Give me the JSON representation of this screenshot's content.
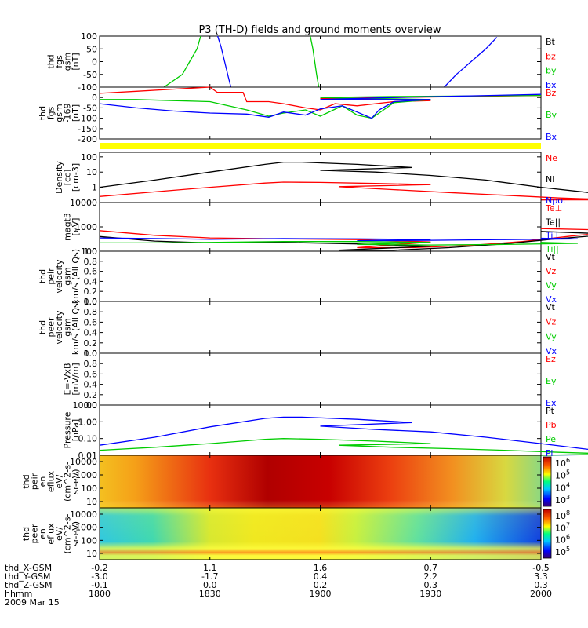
{
  "title": "P3 (TH-D) fields and ground moments overview",
  "colors": {
    "black": "#000000",
    "red": "#ff0000",
    "green": "#00cc00",
    "blue": "#0000ff",
    "yellow": "#ffff00"
  },
  "chart_data": [
    {
      "type": "line",
      "panel": "fgs",
      "ylabel": [
        "thd",
        "fgs",
        "gsm",
        "[nT]"
      ],
      "ylim": [
        -100,
        100
      ],
      "yticks": [
        "100",
        "50",
        "0",
        "-50",
        "-100"
      ],
      "legend": [
        {
          "text": "Bt",
          "color": "#000000"
        },
        {
          "text": "bz",
          "color": "#ff0000"
        },
        {
          "text": "by",
          "color": "#00cc00"
        },
        {
          "text": "bx",
          "color": "#0000ff"
        }
      ],
      "series": [
        {
          "name": "by",
          "color": "#00cc00",
          "x": [
            1817.5,
            1822.5,
            1824.5,
            1826.5,
            1827.5
          ],
          "y": [
            -100,
            -50,
            0,
            50,
            100
          ]
        },
        {
          "name": "by",
          "color": "#00cc00",
          "x": [
            1857.3,
            1858,
            1859,
            1859.6
          ],
          "y": [
            100,
            50,
            -50,
            -100
          ]
        },
        {
          "name": "bx",
          "color": "#0000ff",
          "x": [
            1832.1,
            1833,
            1834,
            1835,
            1835.7
          ],
          "y": [
            100,
            60,
            0,
            -60,
            -100
          ]
        },
        {
          "name": "bx",
          "color": "#0000ff",
          "x": [
            1933.7,
            1937,
            1941,
            1945,
            1948
          ],
          "y": [
            -100,
            -50,
            0,
            50,
            95
          ]
        }
      ]
    },
    {
      "type": "line",
      "panel": "fgs-169",
      "ylabel": [
        "thd",
        "fgs",
        "gsm",
        "-169",
        "[nT]"
      ],
      "ylim": [
        -200,
        50
      ],
      "yticks": [
        "0",
        "-50",
        "-100",
        "-150",
        "-200"
      ],
      "legend": [
        {
          "text": "Bz",
          "color": "#ff0000"
        },
        {
          "text": "By",
          "color": "#00cc00"
        },
        {
          "text": "Bx",
          "color": "#0000ff"
        }
      ],
      "series": [
        {
          "name": "Bz",
          "color": "#ff0000",
          "x": [
            1800,
            1810,
            1820,
            1830,
            1832,
            1839,
            1840,
            1846,
            1850,
            1856,
            1860,
            1864,
            1870,
            1880,
            1890,
            1900,
            1920,
            2000
          ],
          "y": [
            20,
            30,
            40,
            50,
            25,
            25,
            -20,
            -20,
            -30,
            -50,
            -60,
            -30,
            -40,
            -20,
            -15,
            -5,
            0,
            10
          ]
        },
        {
          "name": "By",
          "color": "#00cc00",
          "x": [
            1800,
            1810,
            1820,
            1830,
            1840,
            1846,
            1850,
            1856,
            1860,
            1866,
            1870,
            1874,
            1880,
            1890,
            1900,
            1920,
            2000
          ],
          "y": [
            -10,
            -10,
            -15,
            -20,
            -60,
            -90,
            -75,
            -60,
            -90,
            -40,
            -85,
            -100,
            -25,
            -10,
            0,
            5,
            10
          ]
        },
        {
          "name": "Bx",
          "color": "#0000ff",
          "x": [
            1800,
            1810,
            1820,
            1830,
            1840,
            1846,
            1850,
            1856,
            1860,
            1866,
            1870,
            1874,
            1876,
            1880,
            1890,
            1900,
            1920,
            2000
          ],
          "y": [
            -30,
            -50,
            -65,
            -75,
            -80,
            -95,
            -70,
            -85,
            -55,
            -40,
            -70,
            -100,
            -60,
            -20,
            -10,
            -10,
            0,
            15
          ]
        }
      ]
    },
    {
      "type": "line",
      "panel": "density",
      "log_scale": true,
      "ylabel": [
        "Density",
        "[cc]",
        "[cm-3]"
      ],
      "ylim": [
        0.1,
        200
      ],
      "yticks": [
        "100",
        "10",
        "1"
      ],
      "legend": [
        {
          "text": "Ne",
          "color": "#ff0000"
        },
        {
          "text": "Ni",
          "color": "#000000"
        },
        {
          "text": "Npot",
          "color": "#0000ff"
        }
      ],
      "series": [
        {
          "name": "Ni",
          "color": "#000000",
          "x": [
            1800,
            1815,
            1830,
            1845,
            1850,
            1855,
            1870,
            1885,
            1900,
            1915,
            1930,
            1945,
            1960,
            1975,
            1990,
            2000
          ],
          "y": [
            1,
            3,
            10,
            32,
            45,
            45,
            32,
            20,
            13,
            10,
            6,
            3,
            1,
            0.4,
            0.2,
            0.15
          ]
        },
        {
          "name": "Ne",
          "color": "#ff0000",
          "x": [
            1800,
            1815,
            1830,
            1845,
            1850,
            1860,
            1875,
            1890,
            1905,
            1920,
            1935,
            1950,
            1965,
            1980,
            2000
          ],
          "y": [
            0.25,
            0.5,
            1,
            1.9,
            2.2,
            2.1,
            1.8,
            1.5,
            1.1,
            0.7,
            0.45,
            0.3,
            0.2,
            0.15,
            0.15
          ]
        }
      ]
    },
    {
      "type": "line",
      "panel": "temperature",
      "log_scale": true,
      "ylabel": [
        "magt3",
        "[eV]"
      ],
      "ylim": [
        100,
        10000
      ],
      "yticks": [
        "10000",
        "1000",
        "100"
      ],
      "legend": [
        {
          "text": "Te⊥",
          "color": "#ff0000"
        },
        {
          "text": "Te||",
          "color": "#000000"
        },
        {
          "text": "Ti⊥",
          "color": "#0000ff"
        },
        {
          "text": "Ti||",
          "color": "#00cc00"
        }
      ],
      "series": [
        {
          "name": "Te⊥",
          "color": "#ff0000",
          "x": [
            1800,
            1815,
            1830,
            1850,
            1870,
            1890,
            1910,
            1925,
            1940,
            1955,
            1970,
            1985,
            2000
          ],
          "y": [
            700,
            450,
            350,
            320,
            300,
            240,
            140,
            140,
            170,
            250,
            450,
            700,
            850
          ]
        },
        {
          "name": "Te||",
          "color": "#000000",
          "x": [
            1800,
            1815,
            1830,
            1850,
            1870,
            1890,
            1905,
            1920,
            1935,
            1950,
            1965,
            1980,
            2000
          ],
          "y": [
            400,
            260,
            220,
            230,
            200,
            160,
            110,
            110,
            140,
            200,
            330,
            500,
            650
          ]
        },
        {
          "name": "Ti⊥",
          "color": "#0000ff",
          "x": [
            1800,
            1815,
            1830,
            1850,
            1870,
            1890,
            1910,
            1930,
            1950,
            1970,
            2000
          ],
          "y": [
            350,
            330,
            310,
            330,
            320,
            300,
            270,
            280,
            300,
            320,
            340
          ]
        },
        {
          "name": "Ti||",
          "color": "#00cc00",
          "x": [
            1800,
            1815,
            1830,
            1850,
            1870,
            1890,
            1910,
            1930,
            1950,
            1970,
            2000
          ],
          "y": [
            220,
            220,
            230,
            250,
            250,
            230,
            190,
            180,
            190,
            210,
            230
          ]
        }
      ]
    },
    {
      "type": "line",
      "panel": "peir-velocity",
      "ylabel": [
        "thd",
        "peir",
        "velocity",
        "gsm",
        "km/s (All Qs)"
      ],
      "ylim": [
        0,
        1
      ],
      "yticks": [
        "1.0",
        "0.8",
        "0.6",
        "0.4",
        "0.2",
        "0.0"
      ],
      "legend": [
        {
          "text": "Vt",
          "color": "#000000"
        },
        {
          "text": "Vz",
          "color": "#ff0000"
        },
        {
          "text": "Vy",
          "color": "#00cc00"
        },
        {
          "text": "Vx",
          "color": "#0000ff"
        }
      ],
      "series": []
    },
    {
      "type": "line",
      "panel": "peer-velocity",
      "ylabel": [
        "thd",
        "peer",
        "velocity",
        "gsm",
        "km/s (All Qs)"
      ],
      "ylim": [
        0,
        1
      ],
      "yticks": [
        "1.0",
        "0.8",
        "0.6",
        "0.4",
        "0.2",
        "0.0"
      ],
      "legend": [
        {
          "text": "Vt",
          "color": "#000000"
        },
        {
          "text": "Vz",
          "color": "#ff0000"
        },
        {
          "text": "Vy",
          "color": "#00cc00"
        },
        {
          "text": "Vx",
          "color": "#0000ff"
        }
      ],
      "series": []
    },
    {
      "type": "line",
      "panel": "efield",
      "ylabel": [
        "E=-VxB",
        "[mV/m]"
      ],
      "ylim": [
        0,
        1
      ],
      "yticks": [
        "1.0",
        "0.8",
        "0.6",
        "0.4",
        "0.2",
        "0.0"
      ],
      "legend": [
        {
          "text": "Ez",
          "color": "#ff0000"
        },
        {
          "text": "Ey",
          "color": "#00cc00"
        },
        {
          "text": "Ex",
          "color": "#0000ff"
        }
      ],
      "series": []
    },
    {
      "type": "line",
      "panel": "pressure",
      "log_scale": true,
      "ylabel": [
        "Pressure",
        "[nPa]"
      ],
      "ylim": [
        0.01,
        10
      ],
      "yticks": [
        "10.00",
        "1.00",
        "0.10",
        "0.01"
      ],
      "legend": [
        {
          "text": "Pt",
          "color": "#000000"
        },
        {
          "text": "Pb",
          "color": "#ff0000"
        },
        {
          "text": "Pe",
          "color": "#00cc00"
        },
        {
          "text": "Pi",
          "color": "#0000ff"
        }
      ],
      "series": [
        {
          "name": "Pi",
          "color": "#0000ff",
          "x": [
            1800,
            1815,
            1830,
            1845,
            1850,
            1855,
            1870,
            1885,
            1900,
            1915,
            1930,
            1945,
            1960,
            1975,
            1990,
            2000
          ],
          "y": [
            0.04,
            0.12,
            0.5,
            1.6,
            1.9,
            1.9,
            1.4,
            0.9,
            0.55,
            0.35,
            0.25,
            0.12,
            0.05,
            0.02,
            0.012,
            0.01
          ]
        },
        {
          "name": "Pe",
          "color": "#00cc00",
          "x": [
            1800,
            1815,
            1830,
            1845,
            1850,
            1860,
            1875,
            1890,
            1905,
            1920,
            1935,
            1950,
            1965,
            1980,
            2000
          ],
          "y": [
            0.02,
            0.03,
            0.05,
            0.09,
            0.1,
            0.09,
            0.07,
            0.05,
            0.04,
            0.03,
            0.025,
            0.02,
            0.015,
            0.012,
            0.01
          ]
        }
      ]
    },
    {
      "type": "heatmap",
      "panel": "peir-en-eflux",
      "ylabel": [
        "thd",
        "peir",
        "en",
        "eflux",
        "eV/",
        "(cm^2-s-",
        "sr-eV)"
      ],
      "yticks": [
        "10000",
        "1000",
        "100",
        "10"
      ],
      "colorbar_labels": [
        "10^6",
        "10^5",
        "10^4",
        "10^3"
      ]
    },
    {
      "type": "heatmap",
      "panel": "peer-en-eflux",
      "ylabel": [
        "thd",
        "peer",
        "en",
        "eflux",
        "eV/",
        "(cm^2-s-",
        "sr-eV)"
      ],
      "yticks": [
        "10000",
        "1000",
        "100",
        "10"
      ],
      "colorbar_labels": [
        "10^8",
        "10^7",
        "10^6",
        "10^5"
      ]
    }
  ],
  "time_axis": {
    "ticks": [
      {
        "x": "-0.2",
        "y": "-3.0",
        "z": "-0.1",
        "time": "1800"
      },
      {
        "x": "1.1",
        "y": "-1.7",
        "z": "0.0",
        "time": "1830"
      },
      {
        "x": "1.6",
        "y": "0.4",
        "z": "0.2",
        "time": "1900"
      },
      {
        "x": "0.7",
        "y": "2.2",
        "z": "0.3",
        "time": "1930"
      },
      {
        "x": "-0.5",
        "y": "3.3",
        "z": "0.3",
        "time": "2000"
      }
    ],
    "row_labels": [
      "thd_X-GSM",
      "thd_Y-GSM",
      "thd_Z-GSM",
      "hhmm",
      "2009 Mar 15"
    ]
  }
}
